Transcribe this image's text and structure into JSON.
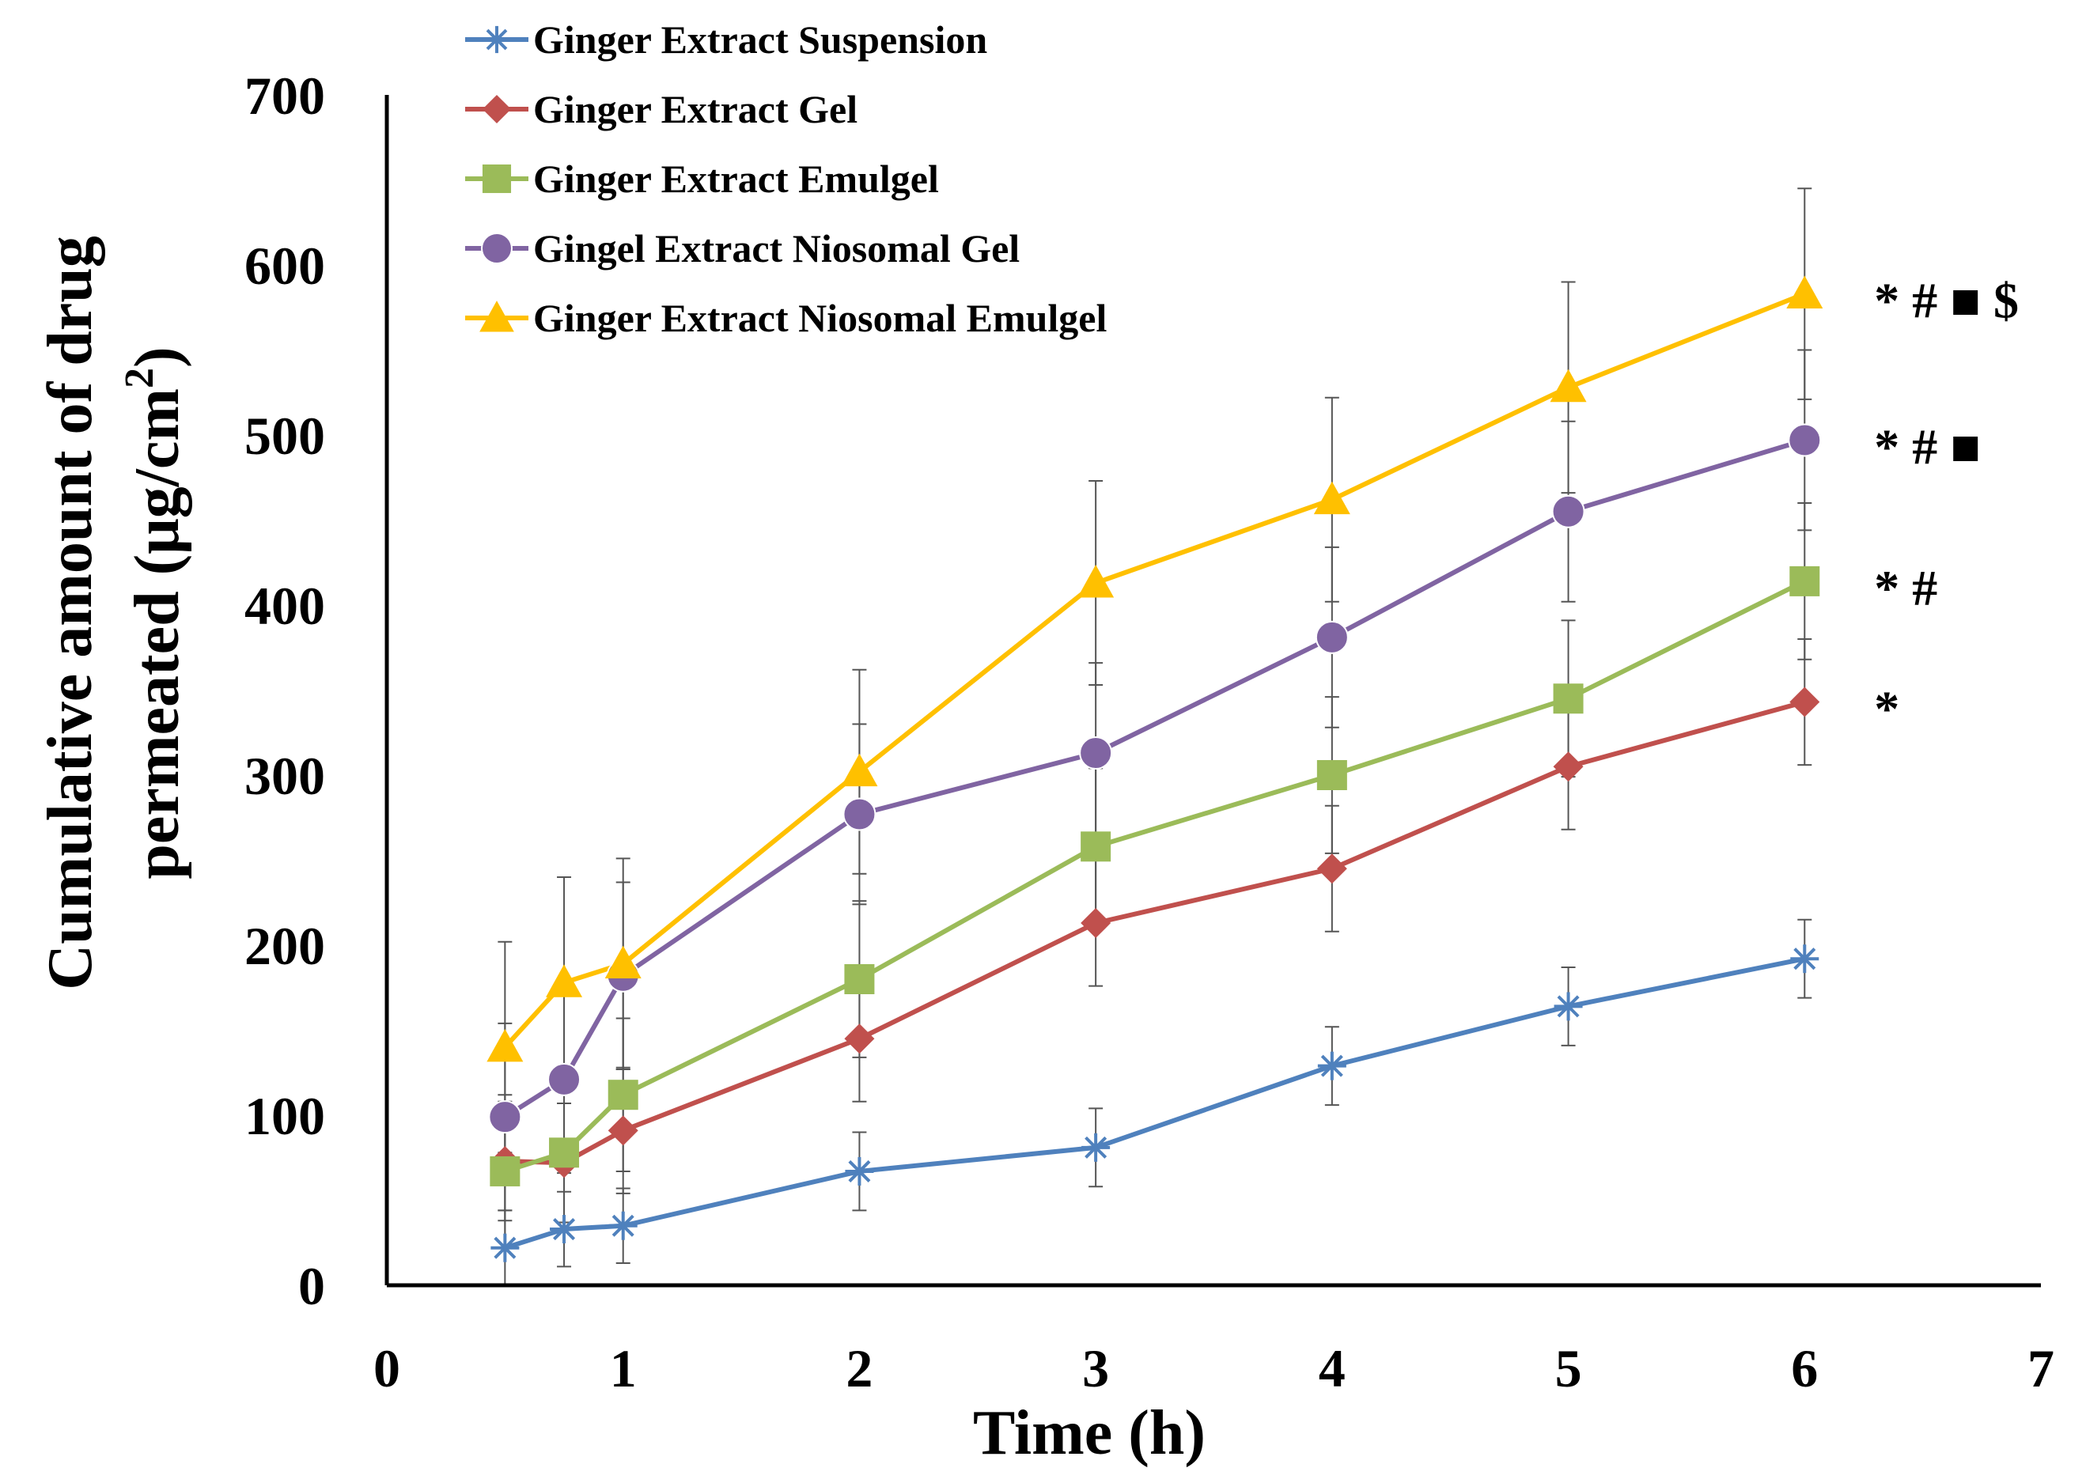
{
  "chart_data": {
    "type": "line",
    "title": "",
    "xlabel": "Time (h)",
    "ylabel_line1": "Cumulative amount of drug",
    "ylabel_line2_prefix": "permeated (μg/cm",
    "ylabel_superscript": "2",
    "ylabel_suffix": ")",
    "xlim": [
      0,
      7
    ],
    "ylim": [
      0,
      700
    ],
    "x_ticks": [
      0,
      1,
      2,
      3,
      4,
      5,
      6,
      7
    ],
    "y_ticks": [
      0,
      100,
      200,
      300,
      400,
      500,
      600,
      700
    ],
    "x": [
      0.5,
      0.75,
      1,
      2,
      3,
      4,
      5,
      6
    ],
    "grid": false,
    "legend_position": "top-left",
    "series": [
      {
        "name": "Ginger Extract Suspension",
        "color": "#4f81bd",
        "marker": "asterisk",
        "values": [
          22,
          33,
          35,
          67,
          81,
          129,
          164,
          192
        ],
        "errors": [
          22,
          22,
          22,
          23,
          23,
          23,
          23,
          23
        ]
      },
      {
        "name": "Ginger Extract Gel",
        "color": "#c0504d",
        "marker": "diamond",
        "values": [
          73,
          72,
          91,
          145,
          213,
          245,
          305,
          343
        ],
        "errors": [
          35,
          35,
          37,
          37,
          37,
          37,
          37,
          37
        ]
      },
      {
        "name": "Ginger Extract Emulgel",
        "color": "#9bbb59",
        "marker": "square",
        "values": [
          67,
          78,
          112,
          180,
          258,
          300,
          345,
          414
        ],
        "errors": [
          45,
          45,
          45,
          46,
          46,
          46,
          46,
          46
        ]
      },
      {
        "name": "Gingel Extract Niosomal Gel",
        "color": "#8064a2",
        "marker": "circle",
        "values": [
          99,
          121,
          182,
          277,
          313,
          381,
          455,
          497
        ],
        "errors": [
          55,
          55,
          55,
          53,
          53,
          53,
          53,
          53
        ]
      },
      {
        "name": "Ginger Extract Niosomal Emulgel",
        "color": "#ffc000",
        "marker": "triangle",
        "values": [
          140,
          178,
          189,
          302,
          413,
          462,
          528,
          583
        ],
        "errors": [
          62,
          62,
          62,
          60,
          60,
          60,
          62,
          62
        ]
      }
    ],
    "annotations": [
      {
        "text": "* # ■ $",
        "series": "Ginger Extract Niosomal Emulgel"
      },
      {
        "text": "* # ■",
        "series": "Gingel Extract Niosomal Gel"
      },
      {
        "text": "* #",
        "series": "Ginger Extract Emulgel"
      },
      {
        "text": "*",
        "series": "Ginger Extract Gel"
      }
    ]
  }
}
